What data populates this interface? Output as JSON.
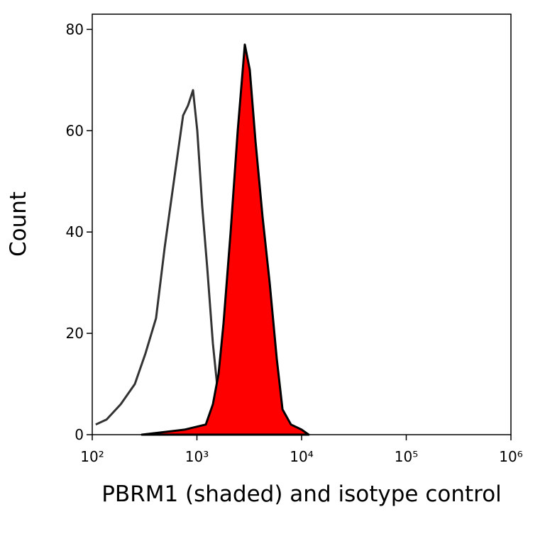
{
  "chart_data": {
    "type": "histogram-overlay",
    "xlabel": "PBRM1 (shaded) and isotype control",
    "ylabel": "Count",
    "xscale": "log",
    "xlim": [
      100,
      1000000
    ],
    "ylim": [
      0,
      83
    ],
    "xticks": [
      {
        "value": 100,
        "label": "10²"
      },
      {
        "value": 1000,
        "label": "10³"
      },
      {
        "value": 10000,
        "label": "10⁴"
      },
      {
        "value": 100000,
        "label": "10⁵"
      },
      {
        "value": 1000000,
        "label": "10⁶"
      }
    ],
    "yticks": [
      0,
      20,
      40,
      60,
      80
    ],
    "series": [
      {
        "color": "#333333",
        "filled": false,
        "x": [
          108,
          137,
          187,
          255,
          322,
          407,
          492,
          557,
          651,
          738,
          823,
          918,
          1008,
          1124,
          1254,
          1421,
          1611,
          1795,
          2099,
          2655
        ],
        "values": [
          2,
          3,
          6,
          10,
          16,
          23,
          37,
          45,
          55,
          63,
          65,
          68,
          60,
          45,
          33,
          18,
          7,
          2,
          1,
          0
        ]
      },
      {
        "color": "#ff0000",
        "edgecolor": "#000000",
        "filled": true,
        "x": [
          298,
          761,
          1216,
          1421,
          1611,
          1795,
          2099,
          2455,
          2870,
          3201,
          3624,
          4236,
          4952,
          5790,
          6566,
          7912,
          10000,
          11690
        ],
        "values": [
          0,
          1,
          2,
          6,
          12,
          22,
          40,
          60,
          77,
          72,
          58,
          43,
          30,
          15,
          5,
          2,
          1,
          0
        ]
      }
    ]
  }
}
